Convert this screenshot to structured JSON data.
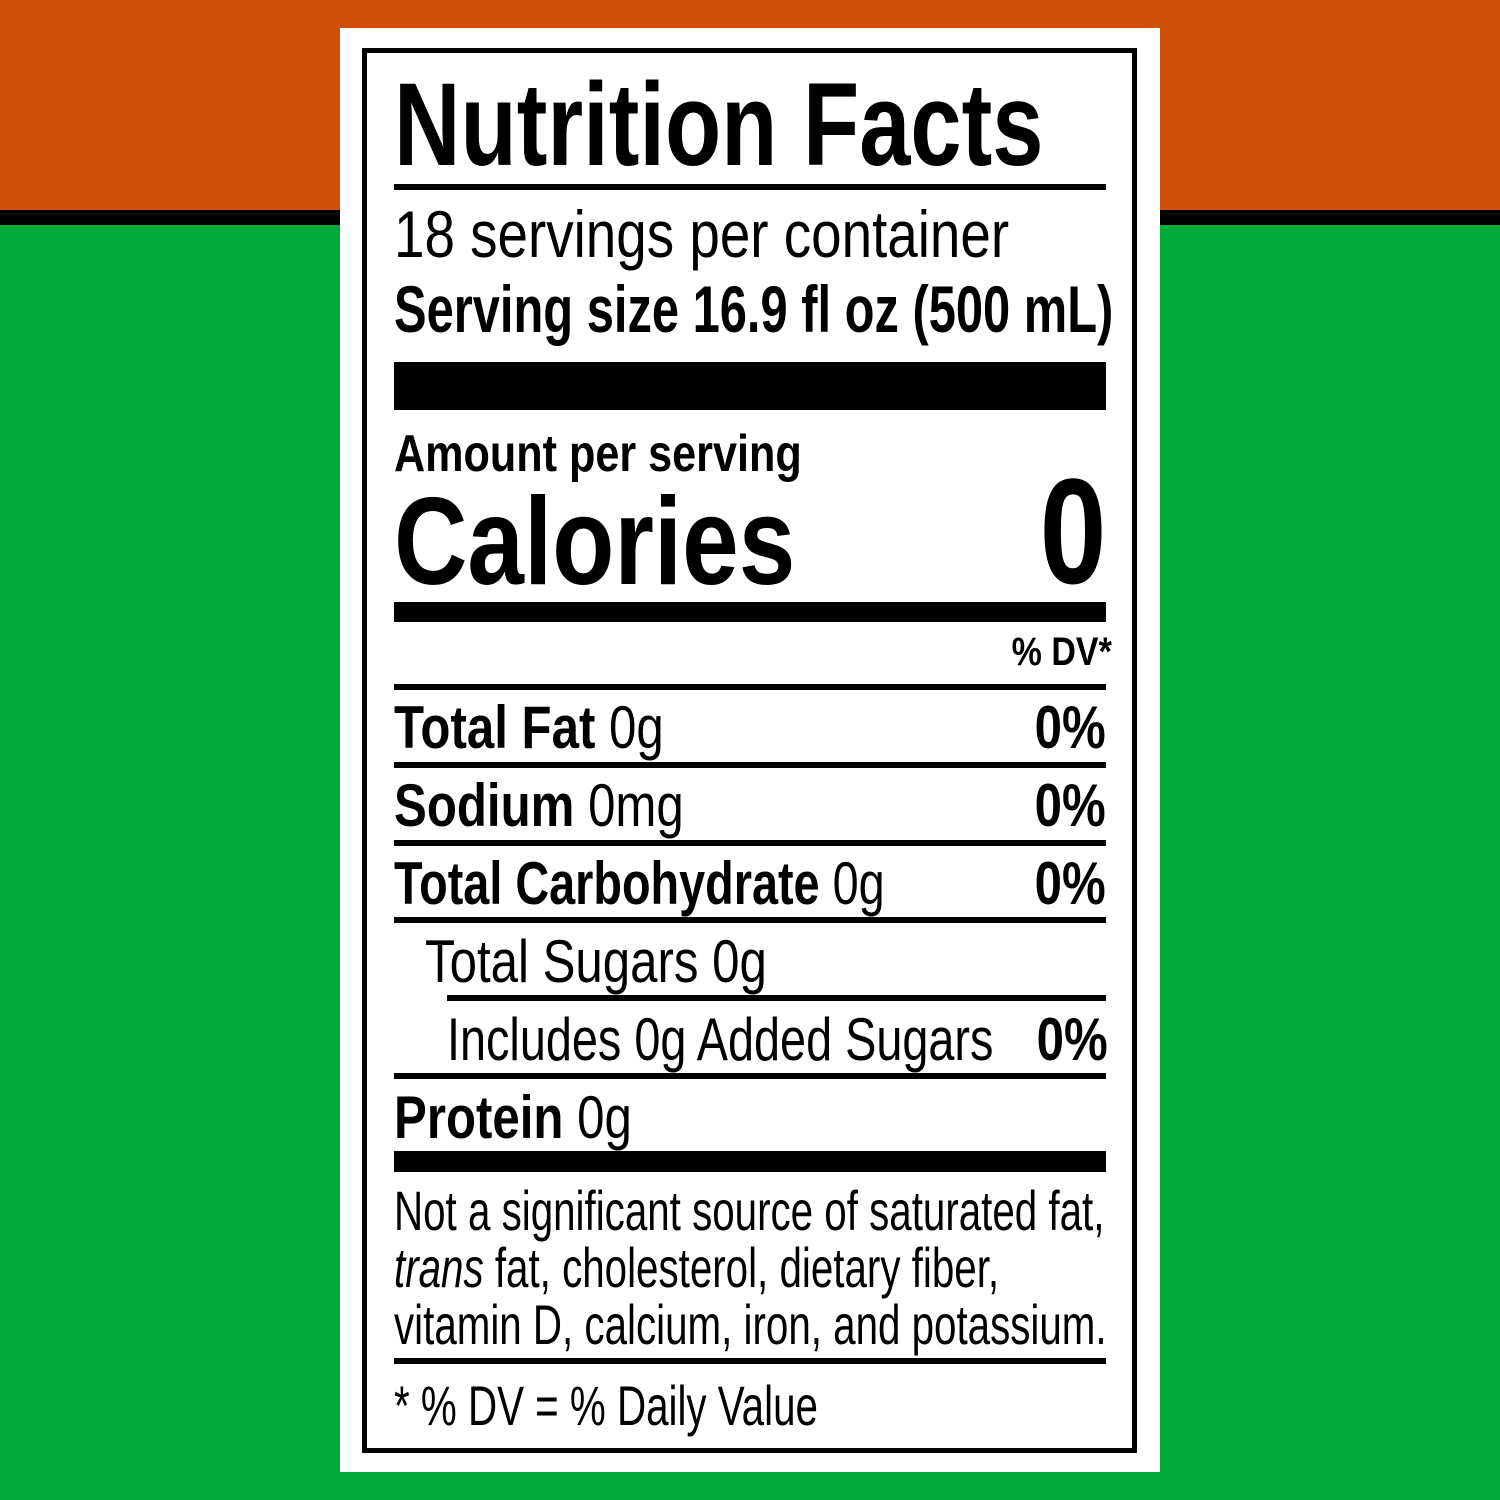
{
  "colors": {
    "top_band": "#cf5006",
    "bottom_band": "#00ab3c",
    "stripe": "#000000"
  },
  "label": {
    "title": "Nutrition Facts",
    "servings": "18 servings per container",
    "serving_size": "Serving size 16.9 fl oz (500 mL)",
    "amount_per_serving": "Amount per serving",
    "calories_label": "Calories",
    "calories_value": "0",
    "dv_header": "% DV*",
    "nutrients": [
      {
        "name": "Total Fat",
        "amount": "0g",
        "dv": "0%"
      },
      {
        "name": "Sodium",
        "amount": "0mg",
        "dv": "0%"
      },
      {
        "name": "Total Carbohydrate",
        "amount": "0g",
        "dv": "0%"
      },
      {
        "name": "Total Sugars 0g"
      },
      {
        "name": "Includes 0g Added Sugars",
        "dv": "0%"
      },
      {
        "name": "Protein",
        "amount": "0g"
      }
    ],
    "footnote_lines": [
      "Not a significant source of saturated fat,",
      "trans",
      " fat, cholesterol, dietary fiber,",
      "vitamin D, calcium, iron, and potassium."
    ],
    "dv_note": "* % DV = % Daily Value"
  }
}
